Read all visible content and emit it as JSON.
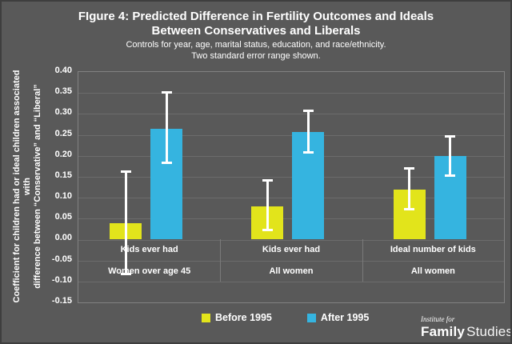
{
  "figure": {
    "title_line1": "FIgure 4: Predicted Difference in Fertility Outcomes and Ideals",
    "title_line2": "Between Conservatives and Liberals",
    "subtitle_line1": "Controls for year, age, marital status, education, and race/ethnicity.",
    "subtitle_line2": "Two standard error range shown."
  },
  "y_axis": {
    "title_line1": "Coefficient for children had or ideal children associated with",
    "title_line2": "difference between “Conservative” and “Liberal”",
    "tick_labels": [
      "0.40",
      "0.35",
      "0.30",
      "0.25",
      "0.20",
      "0.15",
      "0.10",
      "0.05",
      "0.00",
      "-0.05",
      "-0.10",
      "-0.15"
    ],
    "max": 0.4,
    "min": -0.15,
    "step": 0.05
  },
  "chart_data": {
    "type": "bar",
    "title": "FIgure 4: Predicted Difference in Fertility Outcomes and Ideals Between Conservatives and Liberals",
    "subtitle": "Controls for year, age, marital status, education, and race/ethnicity. Two standard error range shown.",
    "ylabel": "Coefficient for children had or ideal children associated with difference between “Conservative” and “Liberal”",
    "ylim": [
      -0.15,
      0.4
    ],
    "grid": true,
    "legend_position": "bottom",
    "error_note": "Two standard error range shown",
    "categories": [
      {
        "line1": "Kids ever had",
        "line2": "Women over age 45"
      },
      {
        "line1": "Kids ever had",
        "line2": "All women"
      },
      {
        "line1": "Ideal number of kids",
        "line2": "All women"
      }
    ],
    "series": [
      {
        "name": "Before 1995",
        "color": "#e2e41b",
        "values": [
          0.04,
          0.08,
          0.12
        ],
        "error_low": [
          -0.085,
          0.02,
          0.07
        ],
        "error_high": [
          0.165,
          0.145,
          0.173
        ]
      },
      {
        "name": "After 1995",
        "color": "#35b4e0",
        "values": [
          0.265,
          0.257,
          0.2
        ],
        "error_low": [
          0.18,
          0.205,
          0.15
        ],
        "error_high": [
          0.355,
          0.31,
          0.25
        ]
      }
    ]
  },
  "logo": {
    "top": "Institute for",
    "bold": "Family",
    "light": "Studies"
  },
  "colors": {
    "background": "#595959",
    "text": "#ffffff",
    "gridline": "#6c6c6c",
    "plot_border": "#828282",
    "error_bar": "#ffffff",
    "before_1995": "#e2e41b",
    "after_1995": "#35b4e0"
  }
}
